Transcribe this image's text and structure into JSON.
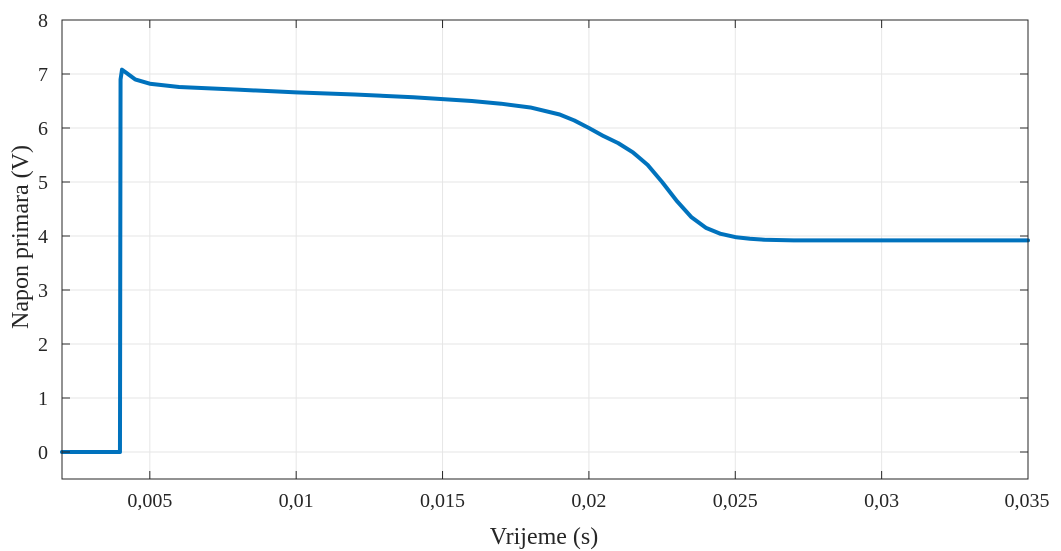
{
  "chart_data": {
    "type": "line",
    "title": "",
    "xlabel": "Vrijeme (s)",
    "ylabel": "Napon primara (V)",
    "xlim": [
      0.002,
      0.035
    ],
    "ylim": [
      -0.5,
      8
    ],
    "grid": true,
    "x_ticks": [
      0.005,
      0.01,
      0.015,
      0.02,
      0.025,
      0.03,
      0.035
    ],
    "x_tick_labels": [
      "0,005",
      "0,01",
      "0,015",
      "0,02",
      "0,025",
      "0,03",
      "0,035"
    ],
    "y_ticks": [
      0,
      1,
      2,
      3,
      4,
      5,
      6,
      7,
      8
    ],
    "y_tick_labels": [
      "0",
      "1",
      "2",
      "3",
      "4",
      "5",
      "6",
      "7",
      "8"
    ],
    "colors": {
      "line": "#0072BD",
      "grid": "#e6e6e6",
      "axes": "#262626"
    },
    "series": [
      {
        "x": [
          0.002,
          0.00398,
          0.004,
          0.00405,
          0.0042,
          0.0045,
          0.005,
          0.006,
          0.008,
          0.01,
          0.012,
          0.014,
          0.016,
          0.017,
          0.018,
          0.019,
          0.0195,
          0.02,
          0.0205,
          0.021,
          0.0215,
          0.022,
          0.0225,
          0.023,
          0.0235,
          0.024,
          0.0245,
          0.025,
          0.0255,
          0.026,
          0.027,
          0.028,
          0.03,
          0.032,
          0.035
        ],
        "y": [
          0,
          0,
          6.9,
          7.08,
          7.02,
          6.9,
          6.82,
          6.76,
          6.71,
          6.66,
          6.62,
          6.57,
          6.5,
          6.45,
          6.38,
          6.25,
          6.14,
          6.0,
          5.85,
          5.72,
          5.55,
          5.32,
          5.0,
          4.65,
          4.35,
          4.15,
          4.04,
          3.98,
          3.95,
          3.93,
          3.92,
          3.92,
          3.92,
          3.92,
          3.92
        ]
      }
    ]
  }
}
